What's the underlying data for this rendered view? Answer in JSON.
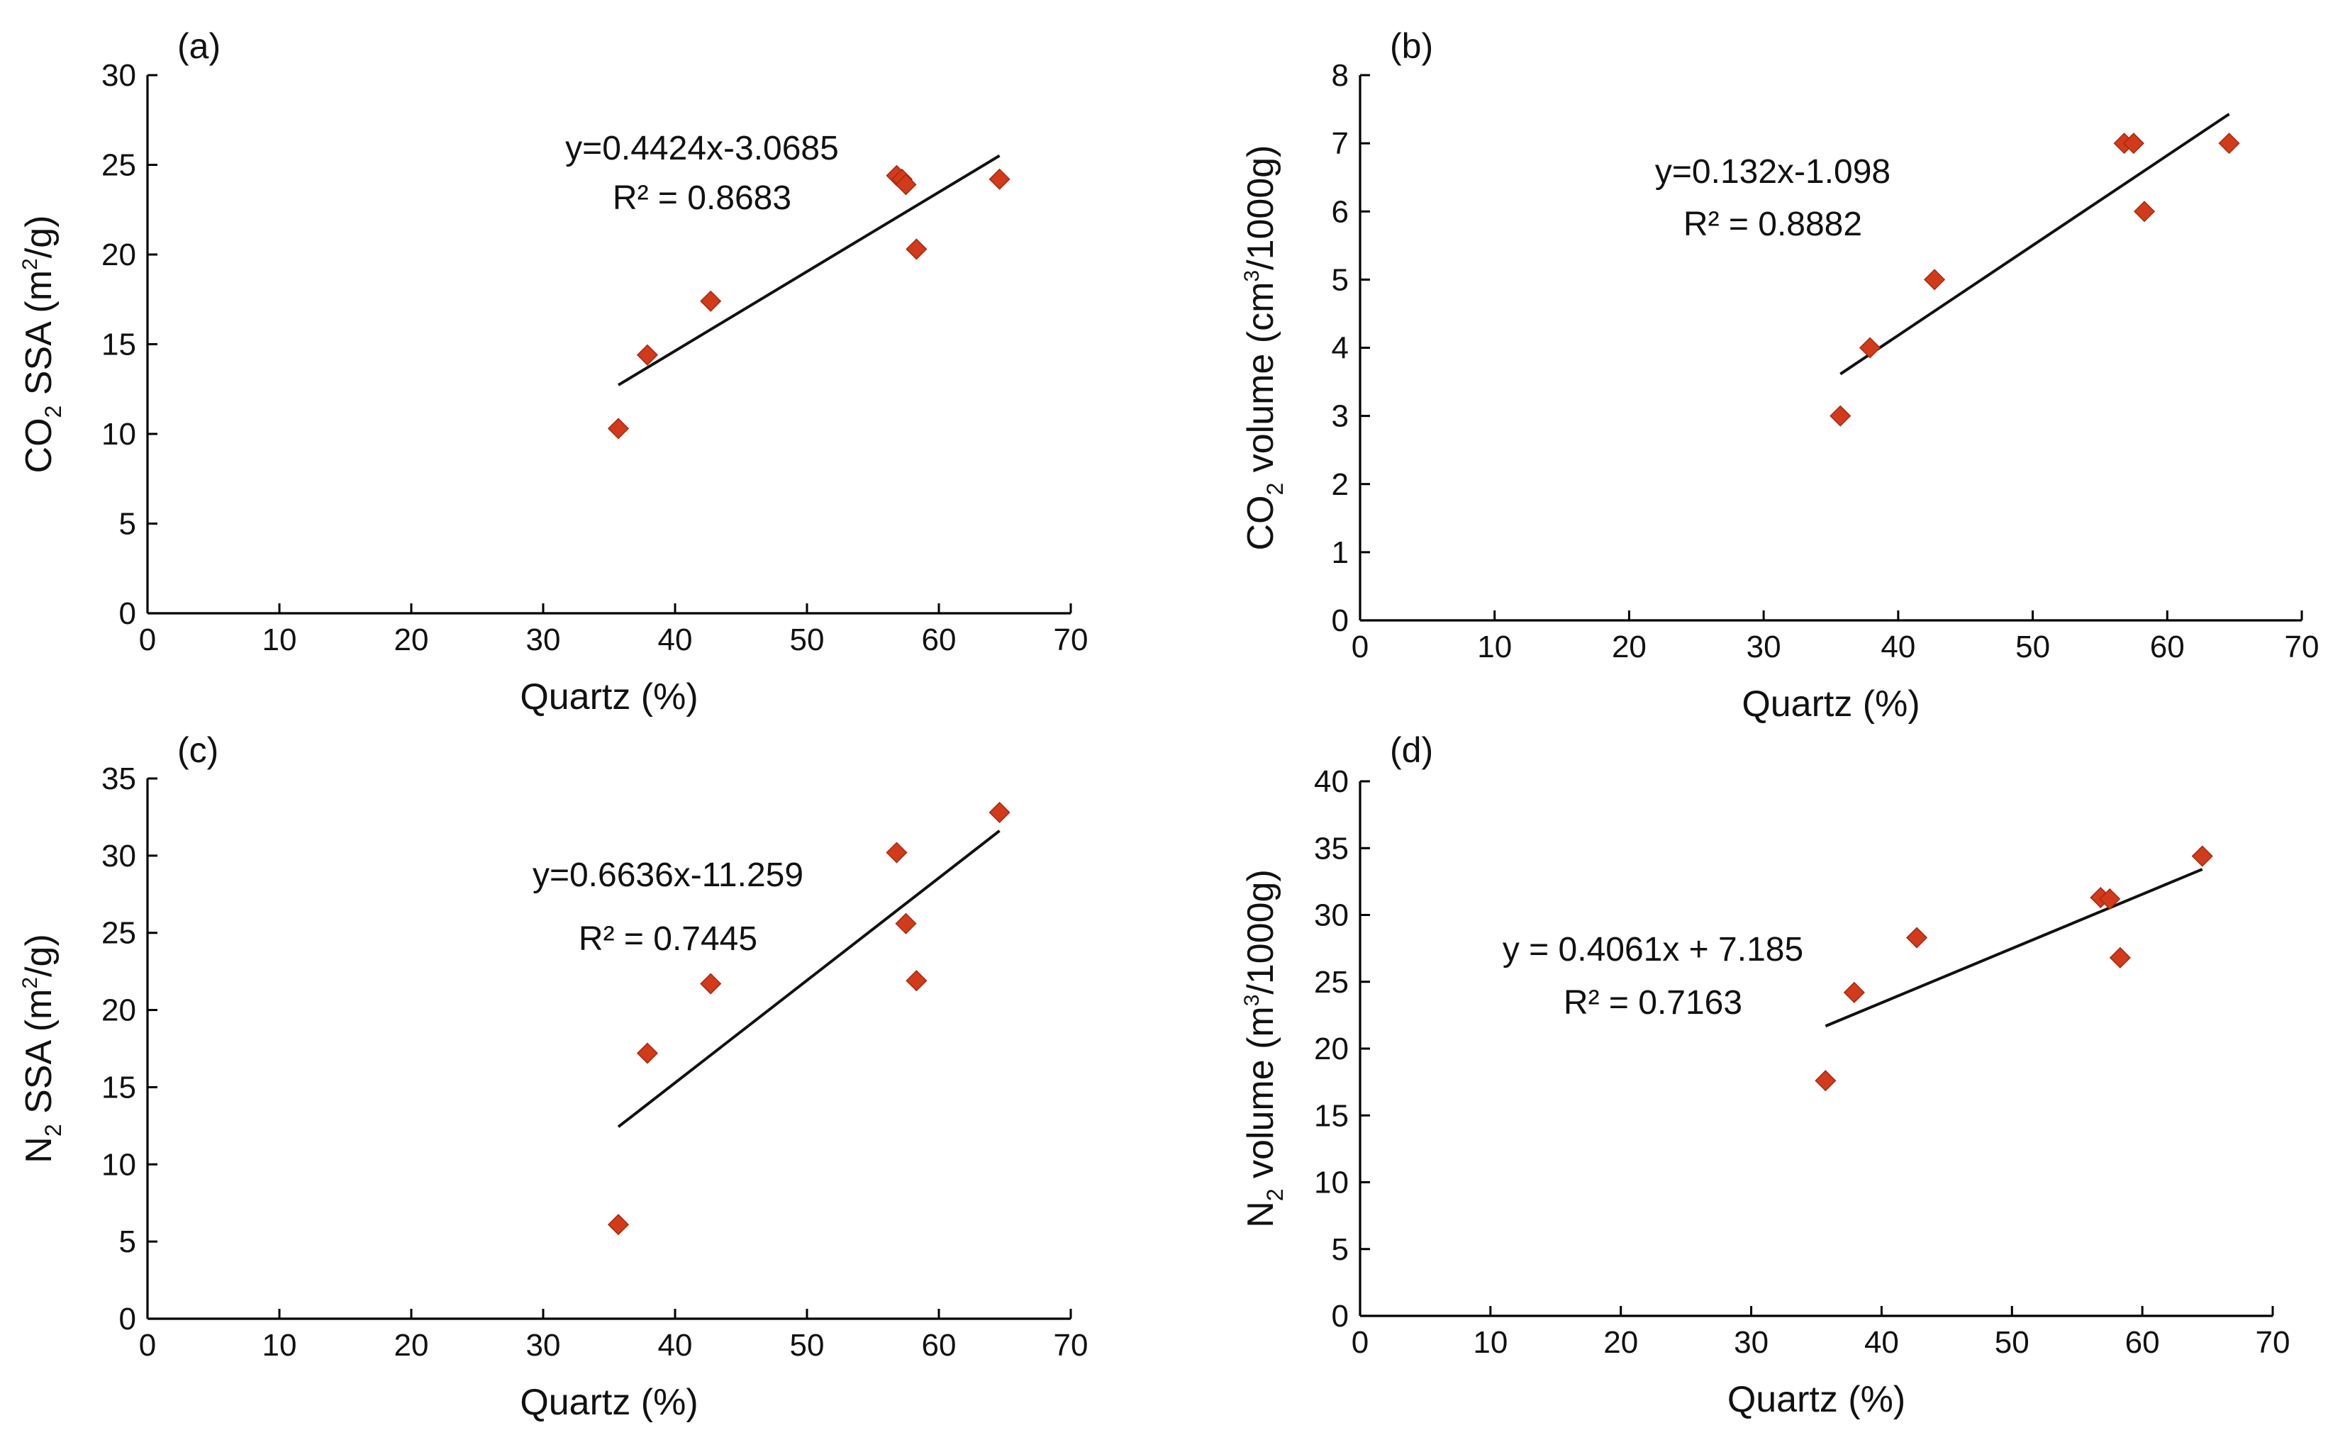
{
  "chart_data": [
    {
      "type": "scatter",
      "panel_label": "(a)",
      "xlabel": "Quartz (%)",
      "ylabel": {
        "prefix": "CO",
        "sub": "2",
        "mid": " SSA (m",
        "sup": "2",
        "suffix": "/g)"
      },
      "xlim": [
        0,
        70
      ],
      "ylim": [
        0,
        30
      ],
      "xticks": [
        "0",
        "10",
        "20",
        "30",
        "40",
        "50",
        "60",
        "70"
      ],
      "yticks": [
        "0",
        "5",
        "10",
        "15",
        "20",
        "25",
        "30"
      ],
      "x": [
        35.7,
        37.9,
        42.7,
        56.8,
        57.2,
        57.5,
        58.3,
        64.6
      ],
      "y": [
        10.3,
        14.4,
        17.4,
        24.4,
        24.2,
        23.9,
        20.3,
        24.2
      ],
      "fit": {
        "slope": 0.4424,
        "intercept": -3.0685,
        "x_range": [
          35.7,
          64.6
        ]
      },
      "annotations": [
        "y=0.4424x-3.0685",
        "R² = 0.8683"
      ]
    },
    {
      "type": "scatter",
      "panel_label": "(b)",
      "xlabel": "Quartz (%)",
      "ylabel": {
        "prefix": "CO",
        "sub": "2",
        "mid": " volume (cm",
        "sup": "3",
        "suffix": "/1000g)"
      },
      "xlim": [
        0,
        70
      ],
      "ylim": [
        0,
        8
      ],
      "xticks": [
        "0",
        "10",
        "20",
        "30",
        "40",
        "50",
        "60",
        "70"
      ],
      "yticks": [
        "0",
        "1",
        "2",
        "3",
        "4",
        "5",
        "6",
        "7",
        "8"
      ],
      "x": [
        35.7,
        37.9,
        42.7,
        56.8,
        57.5,
        58.3,
        64.6
      ],
      "y": [
        3,
        4,
        5,
        7,
        7,
        6,
        7
      ],
      "fit": {
        "slope": 0.132,
        "intercept": -1.098,
        "x_range": [
          35.7,
          64.6
        ]
      },
      "annotations": [
        "y=0.132x-1.098",
        "R² = 0.8882"
      ]
    },
    {
      "type": "scatter",
      "panel_label": "(c)",
      "xlabel": "Quartz (%)",
      "ylabel": {
        "prefix": "N",
        "sub": "2",
        "mid": " SSA (m",
        "sup": "2",
        "suffix": "/g)"
      },
      "xlim": [
        0,
        70
      ],
      "ylim": [
        0,
        35
      ],
      "xticks": [
        "0",
        "10",
        "20",
        "30",
        "40",
        "50",
        "60",
        "70"
      ],
      "yticks": [
        "0",
        "5",
        "10",
        "15",
        "20",
        "25",
        "30",
        "35"
      ],
      "x": [
        35.7,
        37.9,
        42.7,
        56.8,
        57.5,
        58.3,
        64.6
      ],
      "y": [
        6.1,
        17.2,
        21.7,
        30.2,
        25.6,
        21.9,
        32.8
      ],
      "fit": {
        "slope": 0.6636,
        "intercept": -11.259,
        "x_range": [
          35.7,
          64.6
        ]
      },
      "annotations": [
        "y=0.6636x-11.259",
        "R² = 0.7445"
      ]
    },
    {
      "type": "scatter",
      "panel_label": "(d)",
      "xlabel": "Quartz (%)",
      "ylabel": {
        "prefix": "N",
        "sub": "2",
        "mid": " volume (m",
        "sup": "3",
        "suffix": "/1000g)"
      },
      "xlim": [
        0,
        70
      ],
      "ylim": [
        0,
        40
      ],
      "xticks": [
        "0",
        "10",
        "20",
        "30",
        "40",
        "50",
        "60",
        "70"
      ],
      "yticks": [
        "0",
        "5",
        "10",
        "15",
        "20",
        "25",
        "30",
        "35",
        "40"
      ],
      "x": [
        35.7,
        37.9,
        42.7,
        56.8,
        57.5,
        58.3,
        64.6
      ],
      "y": [
        17.6,
        24.2,
        28.3,
        31.3,
        31.2,
        26.8,
        34.4
      ],
      "fit": {
        "slope": 0.4061,
        "intercept": 7.185,
        "x_range": [
          35.7,
          64.6
        ]
      },
      "annotations": [
        "y = 0.4061x + 7.185",
        "R² = 0.7163"
      ]
    }
  ]
}
